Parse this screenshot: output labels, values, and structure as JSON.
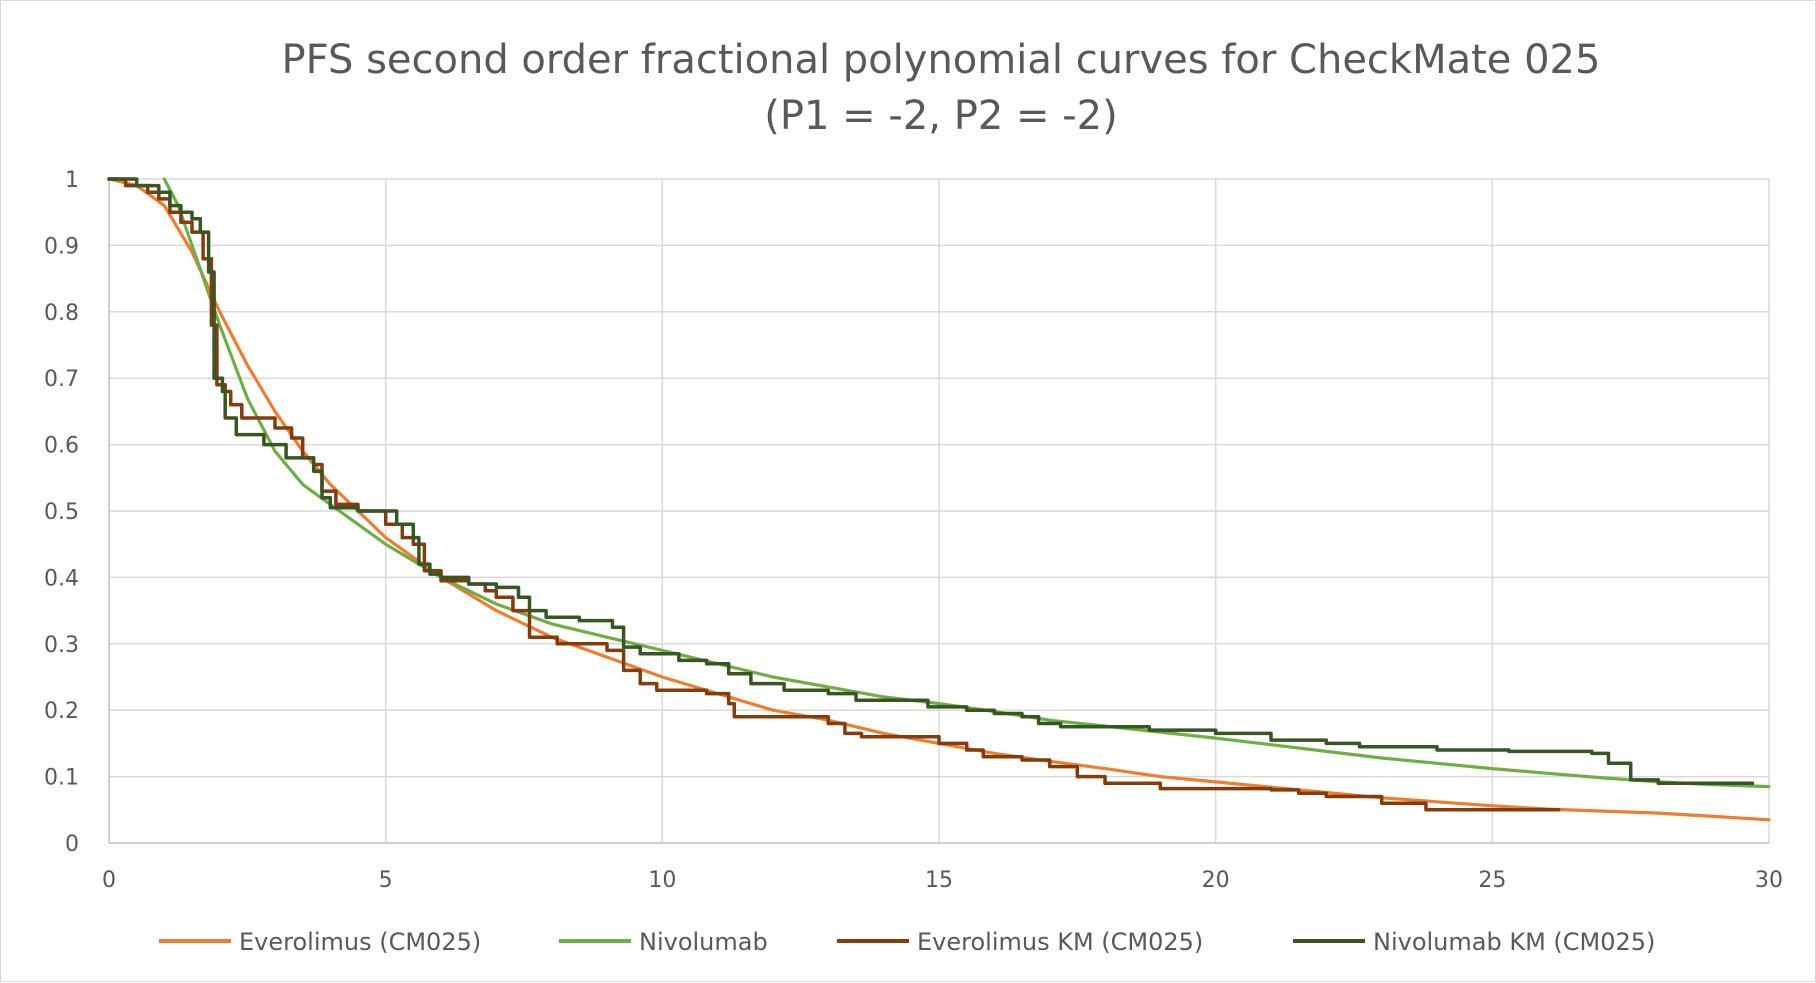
{
  "chart_data": {
    "type": "line",
    "title": "PFS second order fractional polynomial curves for CheckMate 025",
    "subtitle": "(P1 = -2, P2 = -2)",
    "xlabel": "",
    "ylabel": "",
    "xlim": [
      0,
      30
    ],
    "ylim": [
      0,
      1
    ],
    "x_ticks": [
      "0",
      "5",
      "10",
      "15",
      "20",
      "25",
      "30"
    ],
    "y_ticks": [
      "0",
      "0.1",
      "0.2",
      "0.3",
      "0.4",
      "0.5",
      "0.6",
      "0.7",
      "0.8",
      "0.9",
      "1"
    ],
    "grid": true,
    "legend_position": "bottom",
    "series": [
      {
        "name": "Everolimus (CM025)",
        "color": "#ED7D31",
        "step": false,
        "points": [
          [
            0,
            1
          ],
          [
            0.5,
            0.99
          ],
          [
            1,
            0.96
          ],
          [
            1.5,
            0.89
          ],
          [
            2,
            0.8
          ],
          [
            2.5,
            0.72
          ],
          [
            3,
            0.65
          ],
          [
            3.5,
            0.59
          ],
          [
            4,
            0.54
          ],
          [
            4.5,
            0.5
          ],
          [
            5,
            0.46
          ],
          [
            6,
            0.4
          ],
          [
            7,
            0.35
          ],
          [
            8,
            0.31
          ],
          [
            9,
            0.28
          ],
          [
            10,
            0.25
          ],
          [
            11,
            0.225
          ],
          [
            12,
            0.2
          ],
          [
            13,
            0.185
          ],
          [
            14,
            0.165
          ],
          [
            15,
            0.15
          ],
          [
            16,
            0.135
          ],
          [
            17,
            0.123
          ],
          [
            18,
            0.112
          ],
          [
            19,
            0.1
          ],
          [
            20,
            0.092
          ],
          [
            21,
            0.084
          ],
          [
            22,
            0.076
          ],
          [
            23,
            0.068
          ],
          [
            24,
            0.062
          ],
          [
            25,
            0.056
          ],
          [
            26,
            0.051
          ],
          [
            27,
            0.048
          ],
          [
            28,
            0.045
          ],
          [
            29,
            0.04
          ],
          [
            30,
            0.035
          ]
        ]
      },
      {
        "name": "Nivolumab",
        "color": "#70AD47",
        "step": false,
        "points": [
          [
            1,
            1
          ],
          [
            1.25,
            0.96
          ],
          [
            1.5,
            0.9
          ],
          [
            2,
            0.78
          ],
          [
            2.5,
            0.67
          ],
          [
            3,
            0.59
          ],
          [
            3.5,
            0.54
          ],
          [
            4,
            0.51
          ],
          [
            4.5,
            0.48
          ],
          [
            5,
            0.45
          ],
          [
            6,
            0.4
          ],
          [
            7,
            0.36
          ],
          [
            8,
            0.33
          ],
          [
            9,
            0.31
          ],
          [
            10,
            0.29
          ],
          [
            11,
            0.27
          ],
          [
            12,
            0.25
          ],
          [
            13,
            0.235
          ],
          [
            14,
            0.22
          ],
          [
            15,
            0.21
          ],
          [
            16,
            0.198
          ],
          [
            17,
            0.185
          ],
          [
            18,
            0.176
          ],
          [
            19,
            0.167
          ],
          [
            20,
            0.158
          ],
          [
            21,
            0.148
          ],
          [
            22,
            0.138
          ],
          [
            23,
            0.128
          ],
          [
            24,
            0.12
          ],
          [
            25,
            0.112
          ],
          [
            26,
            0.105
          ],
          [
            27,
            0.098
          ],
          [
            28,
            0.092
          ],
          [
            29,
            0.088
          ],
          [
            30,
            0.085
          ]
        ]
      },
      {
        "name": "Everolimus KM (CM025)",
        "color": "#843C0C",
        "step": true,
        "points": [
          [
            0,
            1
          ],
          [
            0.3,
            0.99
          ],
          [
            0.7,
            0.98
          ],
          [
            0.9,
            0.97
          ],
          [
            1.1,
            0.95
          ],
          [
            1.3,
            0.935
          ],
          [
            1.5,
            0.92
          ],
          [
            1.7,
            0.88
          ],
          [
            1.85,
            0.78
          ],
          [
            1.95,
            0.69
          ],
          [
            2.1,
            0.68
          ],
          [
            2.2,
            0.66
          ],
          [
            2.4,
            0.64
          ],
          [
            3,
            0.625
          ],
          [
            3.3,
            0.61
          ],
          [
            3.5,
            0.58
          ],
          [
            3.7,
            0.57
          ],
          [
            3.85,
            0.53
          ],
          [
            4.1,
            0.51
          ],
          [
            4.5,
            0.5
          ],
          [
            5,
            0.48
          ],
          [
            5.3,
            0.46
          ],
          [
            5.5,
            0.45
          ],
          [
            5.7,
            0.41
          ],
          [
            6,
            0.395
          ],
          [
            6.5,
            0.39
          ],
          [
            6.8,
            0.38
          ],
          [
            7,
            0.37
          ],
          [
            7.3,
            0.35
          ],
          [
            7.6,
            0.31
          ],
          [
            8.1,
            0.3
          ],
          [
            9,
            0.29
          ],
          [
            9.3,
            0.26
          ],
          [
            9.6,
            0.24
          ],
          [
            9.9,
            0.23
          ],
          [
            10.8,
            0.225
          ],
          [
            11.2,
            0.21
          ],
          [
            11.3,
            0.19
          ],
          [
            12.5,
            0.19
          ],
          [
            13,
            0.18
          ],
          [
            13.3,
            0.165
          ],
          [
            13.6,
            0.16
          ],
          [
            15,
            0.15
          ],
          [
            15.5,
            0.14
          ],
          [
            15.8,
            0.13
          ],
          [
            16.5,
            0.125
          ],
          [
            17,
            0.115
          ],
          [
            17.5,
            0.1
          ],
          [
            18,
            0.09
          ],
          [
            19,
            0.082
          ],
          [
            21,
            0.08
          ],
          [
            21.5,
            0.075
          ],
          [
            22,
            0.07
          ],
          [
            23,
            0.06
          ],
          [
            23.8,
            0.05
          ],
          [
            26.2,
            0.05
          ]
        ]
      },
      {
        "name": "Nivolumab KM (CM025)",
        "color": "#375623",
        "step": true,
        "points": [
          [
            0,
            1
          ],
          [
            0.5,
            0.99
          ],
          [
            0.9,
            0.98
          ],
          [
            1.1,
            0.96
          ],
          [
            1.3,
            0.95
          ],
          [
            1.5,
            0.94
          ],
          [
            1.65,
            0.92
          ],
          [
            1.8,
            0.86
          ],
          [
            1.9,
            0.7
          ],
          [
            2.05,
            0.68
          ],
          [
            2.1,
            0.64
          ],
          [
            2.3,
            0.615
          ],
          [
            2.8,
            0.6
          ],
          [
            3.2,
            0.58
          ],
          [
            3.7,
            0.56
          ],
          [
            3.85,
            0.52
          ],
          [
            4,
            0.505
          ],
          [
            4.5,
            0.5
          ],
          [
            5.2,
            0.48
          ],
          [
            5.5,
            0.46
          ],
          [
            5.6,
            0.42
          ],
          [
            5.8,
            0.405
          ],
          [
            6,
            0.4
          ],
          [
            6.5,
            0.39
          ],
          [
            7,
            0.385
          ],
          [
            7.4,
            0.37
          ],
          [
            7.6,
            0.35
          ],
          [
            7.9,
            0.34
          ],
          [
            8.5,
            0.335
          ],
          [
            9.1,
            0.325
          ],
          [
            9.3,
            0.295
          ],
          [
            9.6,
            0.285
          ],
          [
            10.3,
            0.275
          ],
          [
            10.8,
            0.27
          ],
          [
            11.2,
            0.255
          ],
          [
            11.6,
            0.24
          ],
          [
            12.2,
            0.23
          ],
          [
            13,
            0.225
          ],
          [
            13.5,
            0.215
          ],
          [
            14.8,
            0.205
          ],
          [
            15.5,
            0.2
          ],
          [
            16,
            0.195
          ],
          [
            16.5,
            0.19
          ],
          [
            16.8,
            0.18
          ],
          [
            17.2,
            0.175
          ],
          [
            18.8,
            0.17
          ],
          [
            20,
            0.165
          ],
          [
            21,
            0.155
          ],
          [
            22,
            0.15
          ],
          [
            22.6,
            0.145
          ],
          [
            24,
            0.14
          ],
          [
            25.3,
            0.138
          ],
          [
            26.8,
            0.135
          ],
          [
            27.1,
            0.12
          ],
          [
            27.5,
            0.095
          ],
          [
            28,
            0.09
          ],
          [
            29.7,
            0.09
          ]
        ]
      }
    ]
  }
}
